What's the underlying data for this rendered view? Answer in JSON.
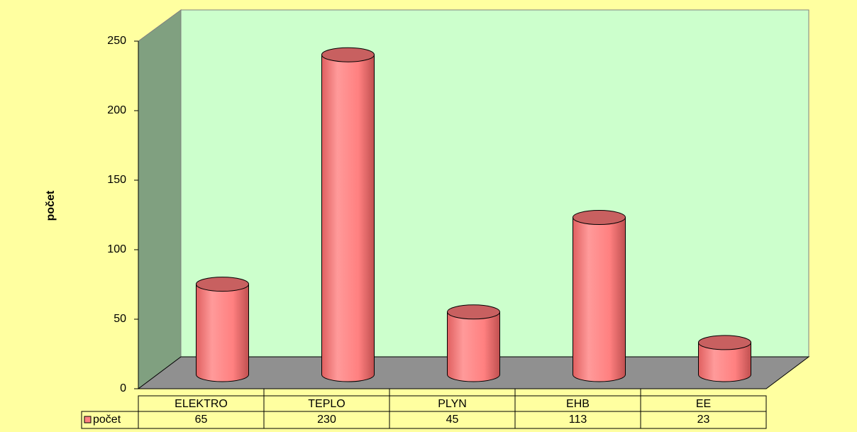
{
  "chart_data": {
    "type": "bar",
    "ylabel": "počet",
    "categories": [
      "ELEKTRO",
      "TEPLO",
      "PLYN",
      "EHB",
      "EE"
    ],
    "series": [
      {
        "name": "počet",
        "color": "#ff8080",
        "values": [
          65,
          230,
          45,
          113,
          23
        ]
      }
    ],
    "ylim": [
      0,
      250
    ],
    "yticks": [
      0,
      50,
      100,
      150,
      200,
      250
    ]
  }
}
